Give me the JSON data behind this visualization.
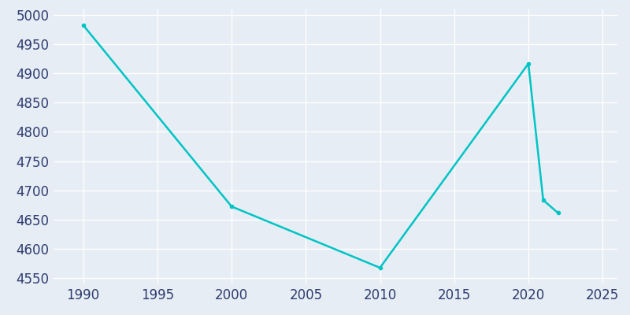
{
  "years": [
    1990,
    2000,
    2010,
    2020,
    2021,
    2022
  ],
  "population": [
    4983,
    4672,
    4567,
    4917,
    4683,
    4661
  ],
  "line_color": "#00C4C4",
  "bg_color": "#E6EDF5",
  "face_color": "#E6EDF5",
  "grid_color": "#FFFFFF",
  "xlabel": "",
  "ylabel": "",
  "xlim": [
    1988,
    2026
  ],
  "ylim": [
    4540,
    5010
  ],
  "yticks": [
    4550,
    4600,
    4650,
    4700,
    4750,
    4800,
    4850,
    4900,
    4950,
    5000
  ],
  "xticks": [
    1990,
    1995,
    2000,
    2005,
    2010,
    2015,
    2020,
    2025
  ],
  "tick_label_color": "#2E3B6E",
  "tick_fontsize": 12,
  "line_width": 1.8,
  "marker": "o",
  "marker_size": 3
}
